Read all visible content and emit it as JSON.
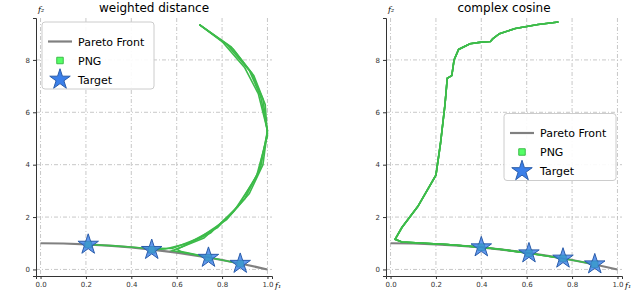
{
  "chart_data": [
    {
      "type": "line",
      "title": "weighted distance",
      "x_label": "f₁",
      "y_label": "f₂",
      "xlim": [
        -0.02,
        1.02
      ],
      "ylim": [
        -0.25,
        9.6
      ],
      "xticks": [
        {
          "value": 0,
          "label": "0.0"
        },
        {
          "value": 0.2,
          "label": "0.2"
        },
        {
          "value": 0.4,
          "label": "0.4"
        },
        {
          "value": 0.6,
          "label": "0.6"
        },
        {
          "value": 0.8,
          "label": "0.8"
        },
        {
          "value": 1,
          "label": "1.0"
        }
      ],
      "yticks": [
        0,
        2,
        4,
        6,
        8
      ],
      "grid": true,
      "legend": "upper left",
      "series": [
        {
          "name": "Pareto Front",
          "type": "line",
          "color": "#808080",
          "x": [
            0,
            0.1,
            0.2,
            0.3,
            0.4,
            0.5,
            0.6,
            0.7,
            0.8,
            0.9,
            1.0
          ],
          "values": [
            1.0,
            0.99,
            0.96,
            0.91,
            0.84,
            0.75,
            0.64,
            0.51,
            0.36,
            0.19,
            0.0
          ]
        },
        {
          "name": "PNG",
          "type": "line",
          "marker": "square",
          "color": "#3dbb4a",
          "x": [
            [
              0.7,
              0.8,
              0.9,
              0.96,
              1.0,
              0.98,
              0.92,
              0.82,
              0.7,
              0.58,
              0.45,
              0.33,
              0.21
            ],
            [
              0.7,
              0.82,
              0.92,
              0.97,
              1.0,
              0.97,
              0.9,
              0.78,
              0.65,
              0.55,
              0.49
            ],
            [
              0.7,
              0.84,
              0.93,
              0.98,
              1.0,
              0.96,
              0.87,
              0.75,
              0.62,
              0.58,
              0.66,
              0.74
            ],
            [
              0.7,
              0.85,
              0.94,
              0.99,
              1.0,
              0.95,
              0.85,
              0.72,
              0.6,
              0.62,
              0.75,
              0.88
            ]
          ],
          "values": [
            [
              9.35,
              8.7,
              7.7,
              6.7,
              5.3,
              4.0,
              2.9,
              1.9,
              1.2,
              0.8,
              0.82,
              0.9,
              0.95
            ],
            [
              9.35,
              8.6,
              7.6,
              6.6,
              5.3,
              3.9,
              2.7,
              1.6,
              1.0,
              0.78,
              0.75
            ],
            [
              9.35,
              8.5,
              7.5,
              6.5,
              5.2,
              3.7,
              2.4,
              1.4,
              0.85,
              0.72,
              0.6,
              0.45
            ],
            [
              9.35,
              8.4,
              7.4,
              6.3,
              5.1,
              3.5,
              2.2,
              1.2,
              0.78,
              0.68,
              0.45,
              0.22
            ]
          ]
        },
        {
          "name": "Target",
          "type": "scatter",
          "marker": "star",
          "color": "#2a5caa",
          "x": [
            0.21,
            0.49,
            0.74,
            0.88
          ],
          "values": [
            0.95,
            0.75,
            0.45,
            0.22
          ]
        }
      ]
    },
    {
      "type": "line",
      "title": "complex cosine",
      "x_label": "f₁",
      "y_label": "f₂",
      "xlim": [
        -0.02,
        1.02
      ],
      "ylim": [
        -0.25,
        9.6
      ],
      "xticks": [
        {
          "value": 0,
          "label": "0.0"
        },
        {
          "value": 0.2,
          "label": "0.2"
        },
        {
          "value": 0.4,
          "label": "0.4"
        },
        {
          "value": 0.6,
          "label": "0.6"
        },
        {
          "value": 0.8,
          "label": "0.8"
        },
        {
          "value": 1,
          "label": "1.0"
        }
      ],
      "yticks": [
        0,
        2,
        4,
        6,
        8
      ],
      "grid": true,
      "legend": "center right",
      "series": [
        {
          "name": "Pareto Front",
          "type": "line",
          "color": "#808080",
          "x": [
            0,
            0.1,
            0.2,
            0.3,
            0.4,
            0.5,
            0.6,
            0.7,
            0.8,
            0.9,
            1.0
          ],
          "values": [
            1.0,
            0.99,
            0.96,
            0.91,
            0.84,
            0.75,
            0.64,
            0.51,
            0.36,
            0.19,
            0.0
          ]
        },
        {
          "name": "PNG",
          "type": "line",
          "marker": "square",
          "color": "#3dbb4a",
          "x": [
            [
              0.74,
              0.65,
              0.55,
              0.48,
              0.45,
              0.44,
              0.4,
              0.35,
              0.3,
              0.28,
              0.27,
              0.25,
              0.24,
              0.22,
              0.2,
              0.12,
              0.05,
              0.02,
              0.05,
              0.15,
              0.25,
              0.4
            ],
            [
              0.74,
              0.65,
              0.55,
              0.48,
              0.45,
              0.44,
              0.4,
              0.35,
              0.3,
              0.28,
              0.27,
              0.25,
              0.24,
              0.22,
              0.2,
              0.12,
              0.05,
              0.02,
              0.05,
              0.15,
              0.25,
              0.4,
              0.5,
              0.61
            ],
            [
              0.74,
              0.65,
              0.55,
              0.48,
              0.45,
              0.44,
              0.4,
              0.35,
              0.3,
              0.28,
              0.27,
              0.25,
              0.24,
              0.22,
              0.2,
              0.12,
              0.05,
              0.02,
              0.05,
              0.15,
              0.25,
              0.4,
              0.5,
              0.61,
              0.76
            ],
            [
              0.74,
              0.65,
              0.55,
              0.48,
              0.45,
              0.44,
              0.4,
              0.35,
              0.3,
              0.28,
              0.27,
              0.25,
              0.24,
              0.22,
              0.2,
              0.12,
              0.05,
              0.02,
              0.05,
              0.15,
              0.25,
              0.4,
              0.5,
              0.61,
              0.76,
              0.9
            ]
          ],
          "values": [
            [
              9.45,
              9.35,
              9.2,
              9.0,
              8.8,
              8.7,
              8.68,
              8.62,
              8.4,
              8.0,
              7.4,
              7.3,
              6.3,
              4.8,
              3.6,
              2.4,
              1.6,
              1.15,
              1.05,
              1.0,
              0.95,
              0.85
            ],
            [
              9.45,
              9.35,
              9.2,
              9.0,
              8.8,
              8.7,
              8.68,
              8.62,
              8.4,
              8.0,
              7.4,
              7.3,
              6.3,
              4.8,
              3.6,
              2.4,
              1.6,
              1.15,
              1.05,
              1.0,
              0.95,
              0.85,
              0.75,
              0.62
            ],
            [
              9.45,
              9.35,
              9.2,
              9.0,
              8.8,
              8.7,
              8.68,
              8.62,
              8.4,
              8.0,
              7.4,
              7.3,
              6.3,
              4.8,
              3.6,
              2.4,
              1.6,
              1.15,
              1.05,
              1.0,
              0.95,
              0.85,
              0.75,
              0.62,
              0.42
            ],
            [
              9.45,
              9.35,
              9.2,
              9.0,
              8.8,
              8.7,
              8.68,
              8.62,
              8.4,
              8.0,
              7.4,
              7.3,
              6.3,
              4.8,
              3.6,
              2.4,
              1.6,
              1.15,
              1.05,
              1.0,
              0.95,
              0.85,
              0.75,
              0.62,
              0.42,
              0.2
            ]
          ]
        },
        {
          "name": "Target",
          "type": "scatter",
          "marker": "star",
          "color": "#2a5caa",
          "x": [
            0.4,
            0.61,
            0.76,
            0.9
          ],
          "values": [
            0.85,
            0.62,
            0.42,
            0.2
          ]
        }
      ]
    }
  ]
}
